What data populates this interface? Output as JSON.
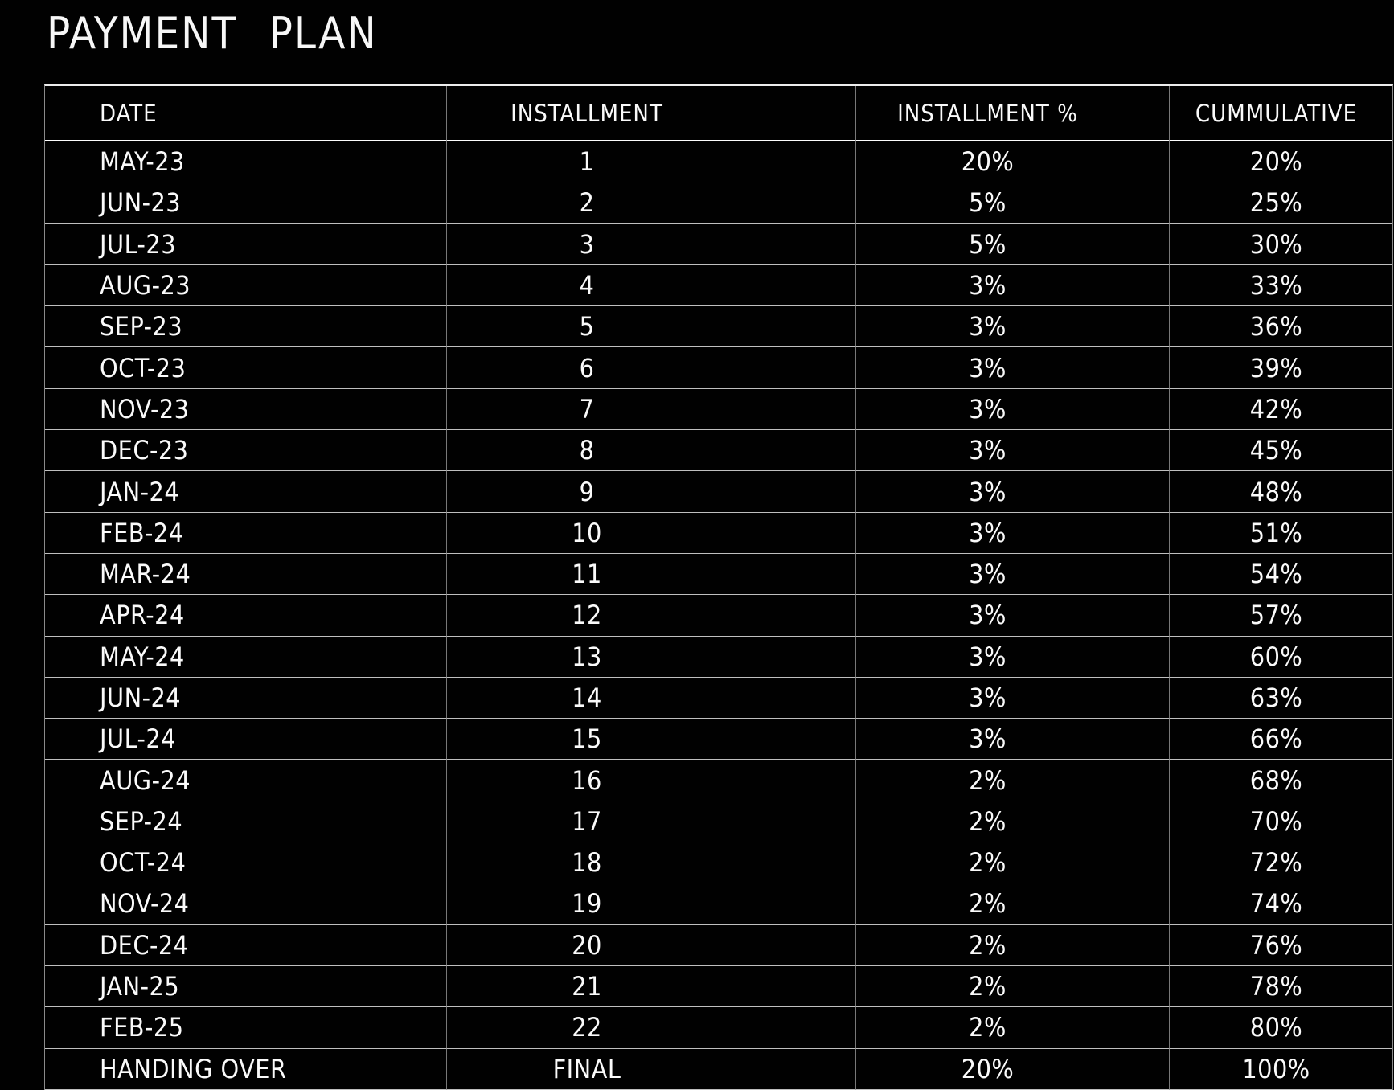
{
  "page": {
    "title": "PAYMENT PLAN",
    "background_color": "#000000",
    "text_color": "#fafafa",
    "grid_line_color": "#8a8a8a"
  },
  "table": {
    "headers": {
      "date": "DATE",
      "installment": "INSTALLMENT",
      "installment_pct": "INSTALLMENT %",
      "cumulative": "CUMMULATIVE"
    },
    "rows": [
      {
        "date": "MAY-23",
        "installment": "1",
        "pct": "20%",
        "cumulative": "20%"
      },
      {
        "date": "JUN-23",
        "installment": "2",
        "pct": "5%",
        "cumulative": "25%"
      },
      {
        "date": "JUL-23",
        "installment": "3",
        "pct": "5%",
        "cumulative": "30%"
      },
      {
        "date": "AUG-23",
        "installment": "4",
        "pct": "3%",
        "cumulative": "33%"
      },
      {
        "date": "SEP-23",
        "installment": "5",
        "pct": "3%",
        "cumulative": "36%"
      },
      {
        "date": "OCT-23",
        "installment": "6",
        "pct": "3%",
        "cumulative": "39%"
      },
      {
        "date": "NOV-23",
        "installment": "7",
        "pct": "3%",
        "cumulative": "42%"
      },
      {
        "date": "DEC-23",
        "installment": "8",
        "pct": "3%",
        "cumulative": "45%"
      },
      {
        "date": "JAN-24",
        "installment": "9",
        "pct": "3%",
        "cumulative": "48%"
      },
      {
        "date": "FEB-24",
        "installment": "10",
        "pct": "3%",
        "cumulative": "51%"
      },
      {
        "date": "MAR-24",
        "installment": "11",
        "pct": "3%",
        "cumulative": "54%"
      },
      {
        "date": "APR-24",
        "installment": "12",
        "pct": "3%",
        "cumulative": "57%"
      },
      {
        "date": "MAY-24",
        "installment": "13",
        "pct": "3%",
        "cumulative": "60%"
      },
      {
        "date": "JUN-24",
        "installment": "14",
        "pct": "3%",
        "cumulative": "63%"
      },
      {
        "date": "JUL-24",
        "installment": "15",
        "pct": "3%",
        "cumulative": "66%"
      },
      {
        "date": "AUG-24",
        "installment": "16",
        "pct": "2%",
        "cumulative": "68%"
      },
      {
        "date": "SEP-24",
        "installment": "17",
        "pct": "2%",
        "cumulative": "70%"
      },
      {
        "date": "OCT-24",
        "installment": "18",
        "pct": "2%",
        "cumulative": "72%"
      },
      {
        "date": "NOV-24",
        "installment": "19",
        "pct": "2%",
        "cumulative": "74%"
      },
      {
        "date": "DEC-24",
        "installment": "20",
        "pct": "2%",
        "cumulative": "76%"
      },
      {
        "date": "JAN-25",
        "installment": "21",
        "pct": "2%",
        "cumulative": "78%"
      },
      {
        "date": "FEB-25",
        "installment": "22",
        "pct": "2%",
        "cumulative": "80%"
      },
      {
        "date": "HANDING OVER",
        "installment": "FINAL",
        "pct": "20%",
        "cumulative": "100%"
      }
    ]
  }
}
